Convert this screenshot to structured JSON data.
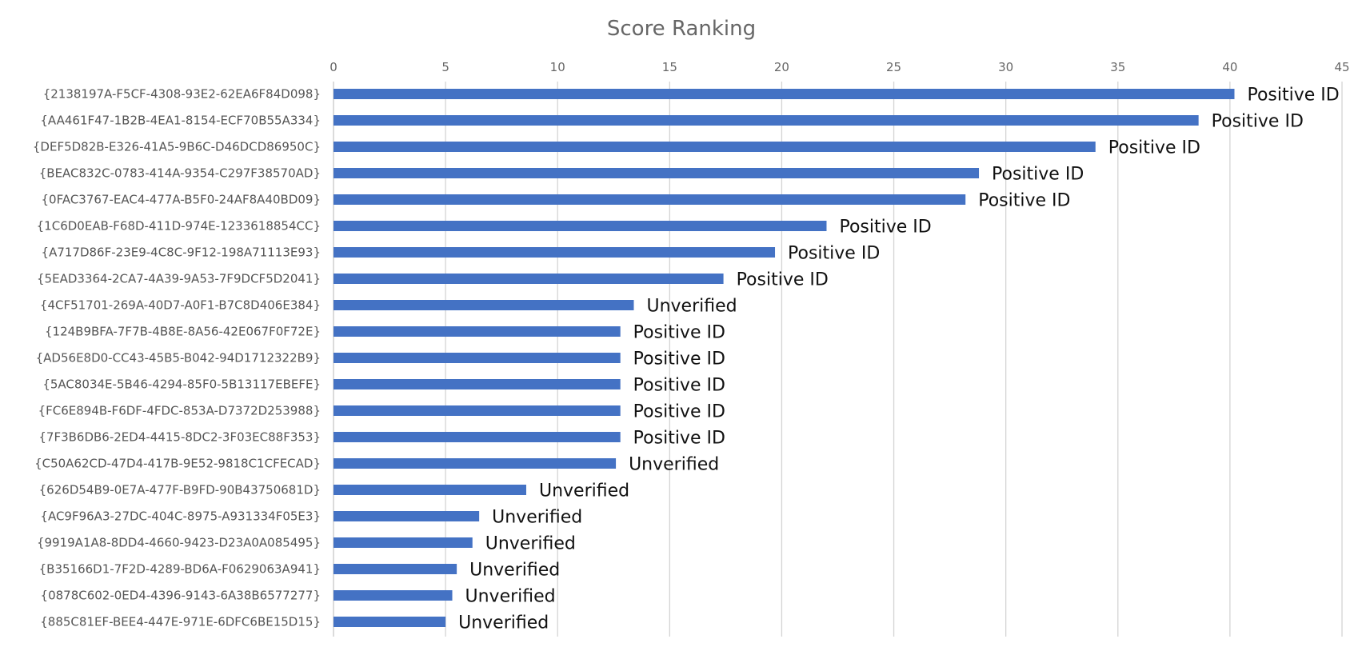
{
  "chart_data": {
    "type": "bar",
    "orientation": "horizontal",
    "title": "Score Ranking",
    "xlim": [
      0,
      45
    ],
    "x_ticks": [
      0,
      5,
      10,
      15,
      20,
      25,
      30,
      35,
      40,
      45
    ],
    "x_axis_position": "top",
    "grid": true,
    "legend": "none",
    "categories": [
      "{2138197A-F5CF-4308-93E2-62EA6F84D098}",
      "{AA461F47-1B2B-4EA1-8154-ECF70B55A334}",
      "{DEF5D82B-E326-41A5-9B6C-D46DCD86950C}",
      "{BEAC832C-0783-414A-9354-C297F38570AD}",
      "{0FAC3767-EAC4-477A-B5F0-24AF8A40BD09}",
      "{1C6D0EAB-F68D-411D-974E-1233618854CC}",
      "{A717D86F-23E9-4C8C-9F12-198A71113E93}",
      "{5EAD3364-2CA7-4A39-9A53-7F9DCF5D2041}",
      "{4CF51701-269A-40D7-A0F1-B7C8D406E384}",
      "{124B9BFA-7F7B-4B8E-8A56-42E067F0F72E}",
      "{AD56E8D0-CC43-45B5-B042-94D1712322B9}",
      "{5AC8034E-5B46-4294-85F0-5B13117EBEFE}",
      "{FC6E894B-F6DF-4FDC-853A-D7372D253988}",
      "{7F3B6DB6-2ED4-4415-8DC2-3F03EC88F353}",
      "{C50A62CD-47D4-417B-9E52-9818C1CFECAD}",
      "{626D54B9-0E7A-477F-B9FD-90B43750681D}",
      "{AC9F96A3-27DC-404C-8975-A931334F05E3}",
      "{9919A1A8-8DD4-4660-9423-D23A0A085495}",
      "{B35166D1-7F2D-4289-BD6A-F0629063A941}",
      "{0878C602-0ED4-4396-9143-6A38B6577277}",
      "{885C81EF-BEE4-447E-971E-6DFC6BE15D15}"
    ],
    "values": [
      40.2,
      38.6,
      34.0,
      28.8,
      28.2,
      22.0,
      19.7,
      17.4,
      13.4,
      12.8,
      12.8,
      12.8,
      12.8,
      12.8,
      12.6,
      8.6,
      6.5,
      6.2,
      5.5,
      5.3,
      5.0
    ],
    "data_labels": [
      "Positive ID",
      "Positive ID",
      "Positive ID",
      "Positive ID",
      "Positive ID",
      "Positive ID",
      "Positive ID",
      "Positive ID",
      "Unverified",
      "Positive ID",
      "Positive ID",
      "Positive ID",
      "Positive ID",
      "Positive ID",
      "Unverified",
      "Unverified",
      "Unverified",
      "Unverified",
      "Unverified",
      "Unverified",
      "Unverified"
    ],
    "colors": {
      "bar": "#4472C4",
      "grid": "#D4D4D4",
      "title": "#666666",
      "tick": "#666666",
      "category": "#555555",
      "data_label": "#111111"
    }
  }
}
